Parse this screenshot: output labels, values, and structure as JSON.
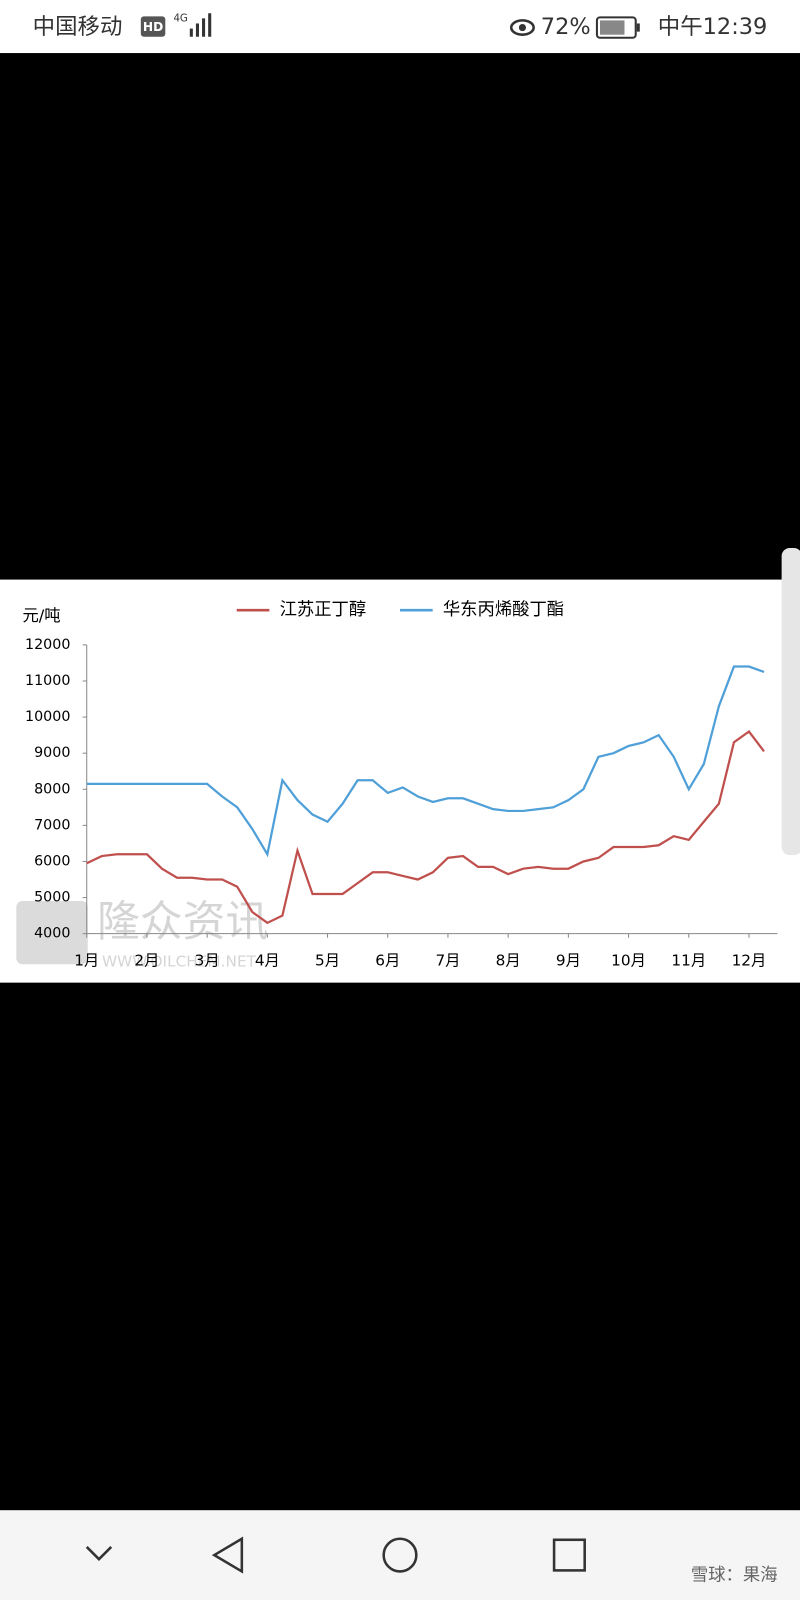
{
  "status_bar": {
    "carrier": "中国移动",
    "hd": "HD",
    "network": "4G",
    "battery": "72%",
    "time": "中午12:39"
  },
  "chart_data": {
    "type": "line",
    "y_label": "元/吨",
    "categories": [
      "1月",
      null,
      null,
      null,
      "2月",
      null,
      null,
      null,
      "3月",
      null,
      null,
      null,
      "4月",
      null,
      null,
      null,
      "5月",
      null,
      null,
      null,
      "6月",
      null,
      null,
      null,
      "7月",
      null,
      null,
      null,
      "8月",
      null,
      null,
      null,
      "9月",
      null,
      null,
      null,
      "10月",
      null,
      null,
      null,
      "11月",
      null,
      null,
      null,
      "12月",
      null
    ],
    "series": [
      {
        "name": "江苏正丁醇",
        "color": "#c0504d",
        "values": [
          5950,
          6150,
          6200,
          6200,
          6200,
          5800,
          5550,
          5550,
          5500,
          5500,
          5300,
          4600,
          4300,
          4500,
          6300,
          5100,
          5100,
          5100,
          5400,
          5700,
          5700,
          5600,
          5500,
          5700,
          6100,
          6150,
          5850,
          5850,
          5650,
          5800,
          5850,
          5800,
          5800,
          6000,
          6100,
          6400,
          6400,
          6400,
          6450,
          6700,
          6600,
          7100,
          7600,
          9300,
          9600,
          9050
        ]
      },
      {
        "name": "华东丙烯酸丁酯",
        "color": "#4f9fd8",
        "values": [
          8150,
          8150,
          8150,
          8150,
          8150,
          8150,
          8150,
          8150,
          8150,
          7800,
          7500,
          6900,
          6200,
          8250,
          7700,
          7300,
          7100,
          7600,
          8250,
          8250,
          7900,
          8050,
          7800,
          7650,
          7750,
          7750,
          7600,
          7450,
          7400,
          7400,
          7450,
          7500,
          7700,
          8000,
          8900,
          9000,
          9200,
          9300,
          9500,
          8900,
          8000,
          8700,
          10300,
          11400,
          11400,
          11250
        ]
      }
    ],
    "ylim": [
      4000,
      12000
    ],
    "yticks": [
      4000,
      5000,
      6000,
      7000,
      8000,
      9000,
      10000,
      11000,
      12000
    ],
    "watermark": {
      "brand": "隆众资讯",
      "url": "WWW.OILCHEM.NET"
    }
  },
  "nav_bar": {
    "watermark": "雪球：果海"
  }
}
